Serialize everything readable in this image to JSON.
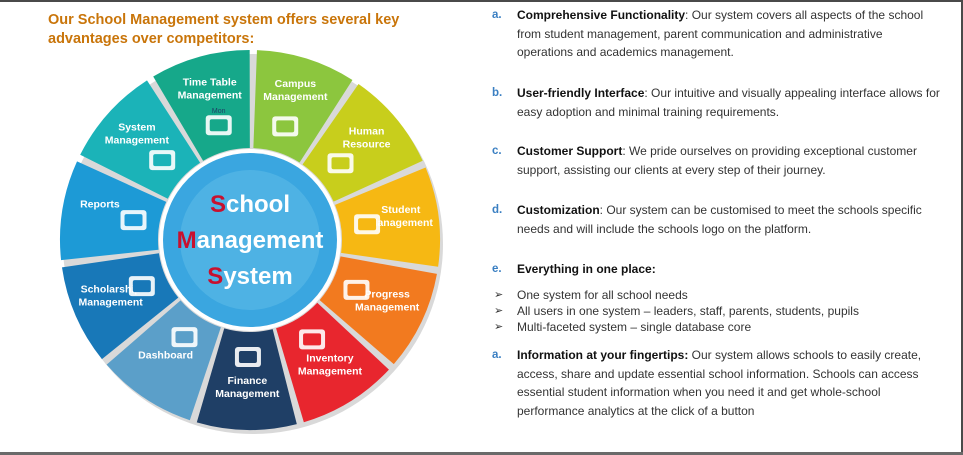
{
  "heading": "Our School Management system offers several key advantages over competitors:",
  "wheel": {
    "center": {
      "line1_first": "S",
      "line1_rest": "chool",
      "line2_first": "M",
      "line2_rest": "anagement",
      "line3_first": "S",
      "line3_rest": "ystem"
    },
    "segments": [
      {
        "line1": "Campus",
        "line2": "Management",
        "color": "#8cc63e",
        "icon": "school-building-icon"
      },
      {
        "line1": "Human",
        "line2": "Resource",
        "color": "#c8ce1c",
        "icon": "people-group-icon"
      },
      {
        "line1": "Student",
        "line2": "Management",
        "color": "#f6b813",
        "icon": "graduates-icon"
      },
      {
        "line1": "Progress",
        "line2": "Management",
        "color": "#f27a1f",
        "icon": "progress-chart-icon"
      },
      {
        "line1": "Inventory",
        "line2": "Management",
        "color": "#e8262e",
        "icon": "inventory-shelf-icon"
      },
      {
        "line1": "Finance",
        "line2": "Management",
        "color": "#1f3f66",
        "icon": "finance-icon"
      },
      {
        "line1": "Dashboard",
        "line2": "",
        "color": "#5b9fc9",
        "icon": "dashboard-screens-icon"
      },
      {
        "line1": "Scholarship",
        "line2": "Management",
        "color": "#1878b8",
        "icon": "hand-money-icon"
      },
      {
        "line1": "Reports",
        "line2": "",
        "color": "#1d9ad6",
        "icon": "report-board-icon"
      },
      {
        "line1": "System",
        "line2": "Management",
        "color": "#1bb3b8",
        "icon": "computer-tools-icon"
      },
      {
        "line1": "Time Table",
        "line2": "Management",
        "color": "#16a88a",
        "icon": "calendar-icon"
      }
    ],
    "calendar_day": "Mon"
  },
  "items": [
    {
      "marker": "a.",
      "title": "Comprehensive Functionality",
      "text": ": Our system covers all aspects of the school from student management, parent communication and administrative operations and academics management."
    },
    {
      "marker": "b.",
      "title": "User-friendly Interface",
      "text": ": Our intuitive and visually appealing interface allows for easy adoption and minimal training requirements."
    },
    {
      "marker": "c.",
      "title": "Customer Support",
      "text": ": We pride ourselves on providing exceptional customer support, assisting our clients at every step of their journey."
    },
    {
      "marker": "d.",
      "title": "Customization",
      "text": ": Our system can be customised to meet the schools specific needs and  will include the schools logo on the platform."
    },
    {
      "marker": "e.",
      "title": "Everything in one place:",
      "text": ""
    },
    {
      "marker": "a.",
      "title": "Information at your fingertips:",
      "text": " Our system allows schools to easily create, access, share and update essential school information. Schools can access essential student information when you need it and get whole-school performance analytics at the click of a button"
    }
  ],
  "bullets": [
    "One system for all school needs",
    "All users in one system – leaders, staff, parents, students, pupils",
    "Multi-faceted system – single database core"
  ],
  "colors": {
    "heading": "#c9750a",
    "marker": "#3a7fc2",
    "center_red": "#c8102e",
    "center_blue": "#1f6fb8",
    "center_bg": "#3aa6e0"
  }
}
